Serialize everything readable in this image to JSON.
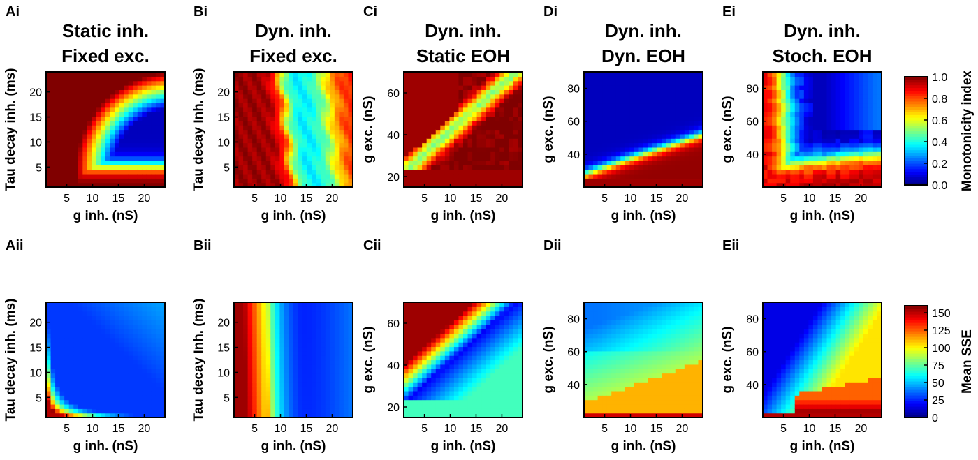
{
  "chart_data": [
    {
      "id": "Ai",
      "type": "heatmap",
      "label": "Ai",
      "title": [
        "Static inh.",
        "Fixed exc."
      ],
      "xlabel": "g inh. (nS)",
      "ylabel": "Tau decay inh. (ms)",
      "xlim": [
        1,
        24
      ],
      "ylim": [
        1,
        24
      ],
      "xticks": [
        5,
        10,
        15,
        20
      ],
      "yticks": [
        5,
        10,
        15,
        20
      ],
      "metric": "monotonicity",
      "pattern": "static_mono",
      "contour_levels": [
        0.5
      ]
    },
    {
      "id": "Bi",
      "type": "heatmap",
      "label": "Bi",
      "title": [
        "Dyn. inh.",
        "Fixed exc."
      ],
      "xlabel": "g inh. (nS)",
      "ylabel": "Tau decay Inh. (ms)",
      "xlim": [
        1,
        24
      ],
      "ylim": [
        1,
        24
      ],
      "xticks": [
        5,
        10,
        15,
        20
      ],
      "yticks": [
        5,
        10,
        15,
        20
      ],
      "metric": "monotonicity",
      "pattern": "dyn_fixed_mono",
      "contour_levels": [
        0.5
      ]
    },
    {
      "id": "Ci",
      "type": "heatmap",
      "label": "Ci",
      "title": [
        "Dyn. inh.",
        "Static EOH"
      ],
      "xlabel": "g inh. (nS)",
      "ylabel": "g exc. (nS)",
      "xlim": [
        1,
        24
      ],
      "ylim": [
        15,
        70
      ],
      "xticks": [
        5,
        10,
        15,
        20
      ],
      "yticks": [
        20,
        40,
        60
      ],
      "metric": "monotonicity",
      "pattern": "static_eoh_mono",
      "contour_levels": [
        0.5
      ]
    },
    {
      "id": "Di",
      "type": "heatmap",
      "label": "Di",
      "title": [
        "Dyn. inh.",
        "Dyn. EOH"
      ],
      "xlabel": "g inh. (nS)",
      "ylabel": "g exc. (nS)",
      "xlim": [
        1,
        24
      ],
      "ylim": [
        20,
        90
      ],
      "xticks": [
        5,
        10,
        15,
        20
      ],
      "yticks": [
        40,
        60,
        80
      ],
      "metric": "monotonicity",
      "pattern": "dyn_eoh_mono",
      "contour_levels": [
        0.5
      ]
    },
    {
      "id": "Ei",
      "type": "heatmap",
      "label": "Ei",
      "title": [
        "Dyn. inh.",
        "Stoch. EOH"
      ],
      "xlabel": "g inh. (nS)",
      "ylabel": "g exc. (nS)",
      "xlim": [
        1,
        24
      ],
      "ylim": [
        20,
        90
      ],
      "xticks": [
        5,
        10,
        15,
        20
      ],
      "yticks": [
        40,
        60,
        80
      ],
      "metric": "monotonicity",
      "pattern": "stoch_eoh_mono",
      "contour_levels": [
        0.5
      ]
    },
    {
      "id": "Aii",
      "type": "heatmap",
      "label": "Aii",
      "title": [],
      "xlabel": "g inh. (nS)",
      "ylabel": "Tau decay inh. (ms)",
      "xlim": [
        1,
        24
      ],
      "ylim": [
        1,
        24
      ],
      "xticks": [
        5,
        10,
        15,
        20
      ],
      "yticks": [
        5,
        10,
        15,
        20
      ],
      "metric": "mean_sse",
      "pattern": "static_sse",
      "contour_levels": [
        40,
        60
      ]
    },
    {
      "id": "Bii",
      "type": "heatmap",
      "label": "Bii",
      "title": [],
      "xlabel": "g inh. (nS)",
      "ylabel": "Tau decay Inh. (ms)",
      "xlim": [
        1,
        24
      ],
      "ylim": [
        1,
        24
      ],
      "xticks": [
        5,
        10,
        15,
        20
      ],
      "yticks": [
        5,
        10,
        15,
        20
      ],
      "metric": "mean_sse",
      "pattern": "dyn_fixed_sse",
      "contour_levels": [
        25,
        40
      ]
    },
    {
      "id": "Cii",
      "type": "heatmap",
      "label": "Cii",
      "title": [],
      "xlabel": "g inh. (nS)",
      "ylabel": "g exc. (nS)",
      "xlim": [
        1,
        24
      ],
      "ylim": [
        15,
        70
      ],
      "xticks": [
        5,
        10,
        15,
        20
      ],
      "yticks": [
        20,
        40,
        60
      ],
      "metric": "mean_sse",
      "pattern": "static_eoh_sse",
      "contour_levels": [
        15
      ]
    },
    {
      "id": "Dii",
      "type": "heatmap",
      "label": "Dii",
      "title": [],
      "xlabel": "g inh. (nS)",
      "ylabel": "g exc. (nS)",
      "xlim": [
        1,
        24
      ],
      "ylim": [
        20,
        90
      ],
      "xticks": [
        5,
        10,
        15,
        20
      ],
      "yticks": [
        40,
        60,
        80
      ],
      "metric": "mean_sse",
      "pattern": "dyn_eoh_sse",
      "contour_levels": [
        100
      ]
    },
    {
      "id": "Eii",
      "type": "heatmap",
      "label": "Eii",
      "title": [],
      "xlabel": "g inh. (nS)",
      "ylabel": "g exc. (nS)",
      "xlim": [
        1,
        24
      ],
      "ylim": [
        20,
        90
      ],
      "xticks": [
        5,
        10,
        15,
        20
      ],
      "yticks": [
        40,
        60,
        80
      ],
      "metric": "mean_sse",
      "pattern": "stoch_eoh_sse",
      "contour_levels": [
        25,
        125
      ]
    }
  ],
  "colorbars": [
    {
      "id": "cb-mono",
      "label": "Monotonicity index",
      "range": [
        0,
        1
      ],
      "ticks": [
        "0.0",
        "0.2",
        "0.4",
        "0.6",
        "0.8",
        "1.0"
      ],
      "tick_values": [
        0,
        0.2,
        0.4,
        0.6,
        0.8,
        1.0
      ]
    },
    {
      "id": "cb-sse",
      "label": "Mean SSE",
      "range": [
        0,
        160
      ],
      "ticks": [
        "0",
        "25",
        "50",
        "75",
        "100",
        "125",
        "150"
      ],
      "tick_values": [
        0,
        25,
        50,
        75,
        100,
        125,
        150
      ]
    }
  ],
  "colormap": "jet"
}
